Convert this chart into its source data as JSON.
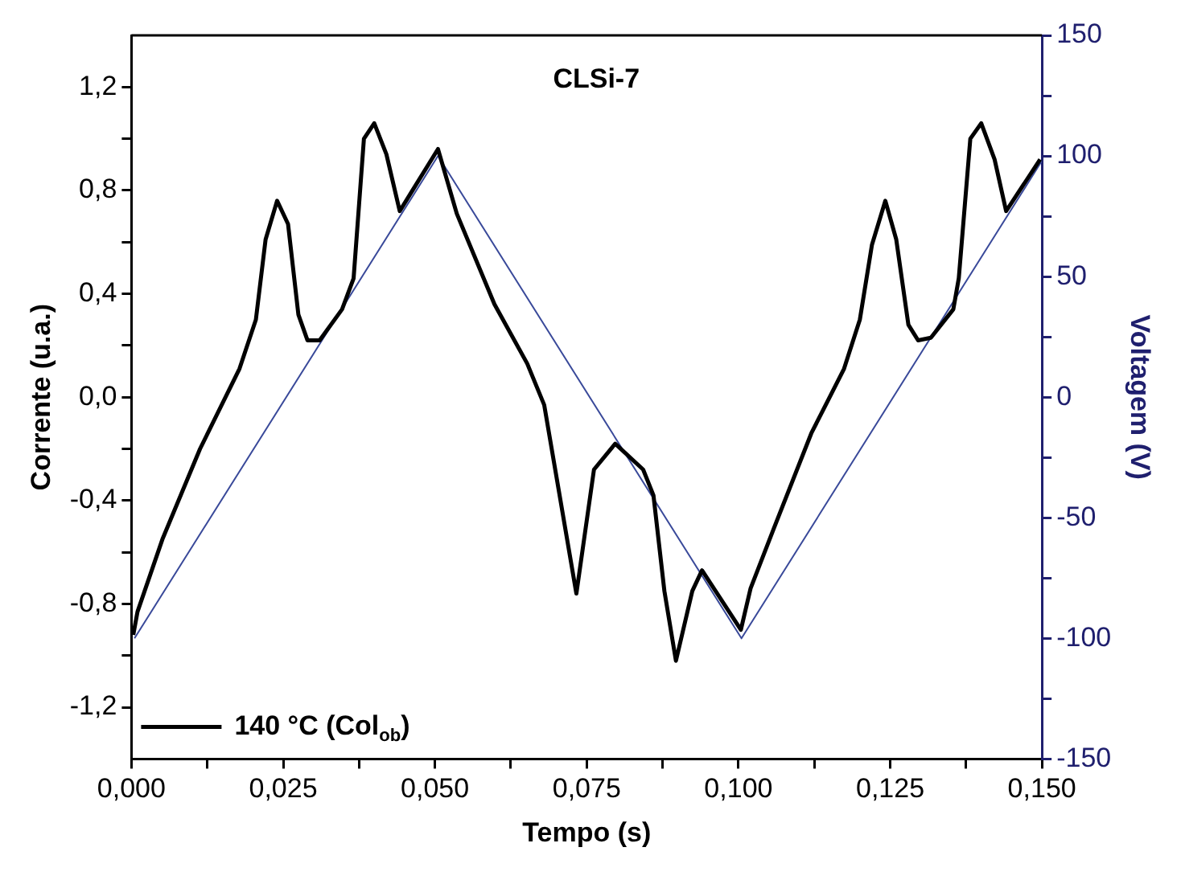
{
  "chart_data": {
    "type": "line",
    "title": "CLSi-7",
    "xlabel": "Tempo (s)",
    "ylabel": "Corrente (u.a.)",
    "y2label": "Voltagem (V)",
    "xlim": [
      0,
      0.15
    ],
    "xticks": [
      {
        "value": 0,
        "label": "0,000"
      },
      {
        "value": 0.0125,
        "label": null
      },
      {
        "value": 0.025,
        "label": "0,025"
      },
      {
        "value": 0.0375,
        "label": null
      },
      {
        "value": 0.05,
        "label": "0,050"
      },
      {
        "value": 0.0625,
        "label": null
      },
      {
        "value": 0.075,
        "label": "0,075"
      },
      {
        "value": 0.0875,
        "label": null
      },
      {
        "value": 0.1,
        "label": "0,100"
      },
      {
        "value": 0.1125,
        "label": null
      },
      {
        "value": 0.125,
        "label": "0,125"
      },
      {
        "value": 0.1375,
        "label": null
      },
      {
        "value": 0.15,
        "label": "0,150"
      }
    ],
    "ylim": [
      -1.4,
      1.4
    ],
    "yticks": [
      {
        "value": -1.2,
        "label": "-1,2"
      },
      {
        "value": -1,
        "label": null
      },
      {
        "value": -0.8,
        "label": "-0,8"
      },
      {
        "value": -0.6,
        "label": null
      },
      {
        "value": -0.4,
        "label": "-0,4"
      },
      {
        "value": -0.2,
        "label": null
      },
      {
        "value": 0,
        "label": "0,0"
      },
      {
        "value": 0.2,
        "label": null
      },
      {
        "value": 0.4,
        "label": "0,4"
      },
      {
        "value": 0.6,
        "label": null
      },
      {
        "value": 0.8,
        "label": "0,8"
      },
      {
        "value": 1,
        "label": null
      },
      {
        "value": 1.2,
        "label": "1,2"
      }
    ],
    "y2lim": [
      -150,
      150
    ],
    "y2ticks": [
      -150,
      {
        "value": -125,
        "label": null
      },
      -100,
      {
        "value": -75,
        "label": null
      },
      -50,
      {
        "value": -25,
        "label": null
      },
      0,
      {
        "value": 25,
        "label": null
      },
      50,
      {
        "value": 75,
        "label": null
      },
      100,
      {
        "value": 125,
        "label": null
      },
      150
    ],
    "legend": "bottom left",
    "marker": "none",
    "line_style": "solid",
    "series": [
      {
        "name": "140 °C (Col$_{ob}$)",
        "color": "#000000",
        "axis": "y",
        "x": [
          0.0003,
          0.001,
          0.0051,
          0.0113,
          0.0178,
          0.0205,
          0.0221,
          0.024,
          0.0258,
          0.0275,
          0.029,
          0.031,
          0.0347,
          0.0366,
          0.0383,
          0.04,
          0.042,
          0.0442,
          0.0505,
          0.0536,
          0.0598,
          0.0652,
          0.068,
          0.0733,
          0.0762,
          0.0797,
          0.0843,
          0.086,
          0.0878,
          0.0897,
          0.0924,
          0.094,
          0.1004,
          0.102,
          0.1058,
          0.112,
          0.1174,
          0.12,
          0.122,
          0.1242,
          0.126,
          0.128,
          0.1296,
          0.1317,
          0.1354,
          0.1363,
          0.1382,
          0.14,
          0.1422,
          0.1441,
          0.1497
        ],
        "values": [
          -0.92,
          -0.83,
          -0.55,
          -0.2,
          0.11,
          0.3,
          0.61,
          0.76,
          0.67,
          0.32,
          0.22,
          0.22,
          0.34,
          0.46,
          1.0,
          1.06,
          0.94,
          0.72,
          0.96,
          0.71,
          0.36,
          0.13,
          -0.03,
          -0.76,
          -0.28,
          -0.18,
          -0.28,
          -0.38,
          -0.75,
          -1.02,
          -0.75,
          -0.67,
          -0.9,
          -0.74,
          -0.51,
          -0.14,
          0.11,
          0.3,
          0.59,
          0.76,
          0.61,
          0.28,
          0.22,
          0.23,
          0.34,
          0.46,
          1.0,
          1.06,
          0.92,
          0.72,
          0.92
        ]
      },
      {
        "color": "#3a4a9a",
        "axis": "y2",
        "x": [
          0.0005,
          0.0505,
          0.1005,
          0.15
        ],
        "values": [
          -100,
          100,
          -100,
          98
        ]
      }
    ]
  }
}
